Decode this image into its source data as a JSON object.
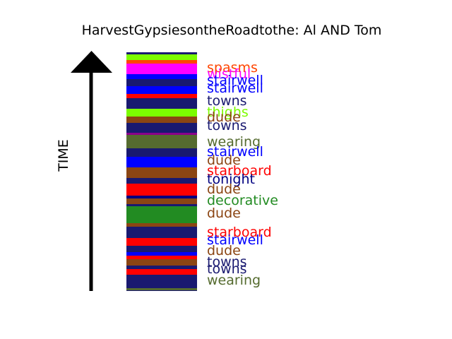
{
  "chart_data": {
    "type": "timeline-stripe",
    "title": "HarvestGypsiesontheRoadtothe: Al AND Tom",
    "ylabel": "TIME",
    "stripes_top_to_bottom": [
      {
        "color": "#191970"
      },
      {
        "color": "#7cfc00"
      },
      {
        "color": "#ff4500"
      },
      {
        "color": "#ff00ff"
      },
      {
        "color": "#0000ff"
      },
      {
        "color": "#191970"
      },
      {
        "color": "#0000ff"
      },
      {
        "color": "#ff0000"
      },
      {
        "color": "#191970"
      },
      {
        "color": "#7cfc00"
      },
      {
        "color": "#8b4513"
      },
      {
        "color": "#191970"
      },
      {
        "color": "#8b008b"
      },
      {
        "color": "#556b2f"
      },
      {
        "color": "#191970"
      },
      {
        "color": "#0000ff"
      },
      {
        "color": "#8b4513"
      },
      {
        "color": "#191970"
      },
      {
        "color": "#ff0000"
      },
      {
        "color": "#000080"
      },
      {
        "color": "#8b4513"
      },
      {
        "color": "#191970"
      },
      {
        "color": "#228b22"
      },
      {
        "color": "#8b4513"
      },
      {
        "color": "#191970"
      },
      {
        "color": "#ff0000"
      },
      {
        "color": "#191970"
      },
      {
        "color": "#0000ff"
      },
      {
        "color": "#ff0000"
      },
      {
        "color": "#8b4513"
      },
      {
        "color": "#191970"
      },
      {
        "color": "#ff0000"
      },
      {
        "color": "#191970"
      },
      {
        "color": "#556b2f"
      },
      {
        "color": "#191970"
      }
    ],
    "labels_top_to_bottom": [
      {
        "text": "spasms",
        "color": "#ff4500"
      },
      {
        "text": "wistful",
        "color": "#ff00ff"
      },
      {
        "text": "stairwell",
        "color": "#0000ff"
      },
      {
        "text": "stairwell",
        "color": "#0000ff"
      },
      {
        "text": "towns",
        "color": "#191970"
      },
      {
        "text": "thighs",
        "color": "#7cfc00"
      },
      {
        "text": "dude",
        "color": "#8b4513"
      },
      {
        "text": "towns",
        "color": "#191970"
      },
      {
        "text": "wearing",
        "color": "#556b2f"
      },
      {
        "text": "stairwell",
        "color": "#0000ff"
      },
      {
        "text": "dude",
        "color": "#8b4513"
      },
      {
        "text": "starboard",
        "color": "#ff0000"
      },
      {
        "text": "tonight",
        "color": "#000080"
      },
      {
        "text": "dude",
        "color": "#8b4513"
      },
      {
        "text": "decorative",
        "color": "#228b22"
      },
      {
        "text": "dude",
        "color": "#8b4513"
      },
      {
        "text": "starboard",
        "color": "#ff0000"
      },
      {
        "text": "stairwell",
        "color": "#0000ff"
      },
      {
        "text": "dude",
        "color": "#8b4513"
      },
      {
        "text": "towns",
        "color": "#191970"
      },
      {
        "text": "towns",
        "color": "#191970"
      },
      {
        "text": "wearing",
        "color": "#556b2f"
      }
    ]
  }
}
